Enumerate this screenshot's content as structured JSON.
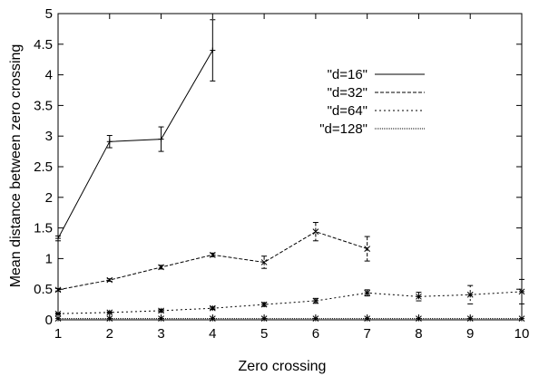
{
  "chart_data": {
    "type": "line",
    "xlabel": "Zero crossing",
    "ylabel": "Mean distance between zero crossing",
    "xlim": [
      1,
      10
    ],
    "ylim": [
      0,
      5
    ],
    "xticks": [
      1,
      2,
      3,
      4,
      5,
      6,
      7,
      8,
      9,
      10
    ],
    "yticks": [
      0,
      0.5,
      1,
      1.5,
      2,
      2.5,
      3,
      3.5,
      4,
      4.5,
      5
    ],
    "grid": false,
    "legend_position": "top-right",
    "series": [
      {
        "name": "\"d=16\"",
        "style": "solid",
        "x": [
          1,
          2,
          3,
          4
        ],
        "y": [
          1.33,
          2.91,
          2.95,
          4.4
        ],
        "err": [
          0.04,
          0.1,
          0.2,
          0.5
        ]
      },
      {
        "name": "\"d=32\"",
        "style": "dashed",
        "x": [
          1,
          2,
          3,
          4,
          5,
          6,
          7
        ],
        "y": [
          0.49,
          0.65,
          0.86,
          1.06,
          0.94,
          1.44,
          1.16
        ],
        "err": [
          0.02,
          0.02,
          0.03,
          0.03,
          0.1,
          0.15,
          0.2
        ]
      },
      {
        "name": "\"d=64\"",
        "style": "dotted",
        "x": [
          1,
          2,
          3,
          4,
          5,
          6,
          7,
          8,
          9,
          10
        ],
        "y": [
          0.1,
          0.12,
          0.15,
          0.19,
          0.25,
          0.31,
          0.44,
          0.38,
          0.41,
          0.46
        ],
        "err": [
          0.01,
          0.01,
          0.02,
          0.02,
          0.03,
          0.04,
          0.05,
          0.07,
          0.15,
          0.2
        ]
      },
      {
        "name": "\"d=128\"",
        "style": "fine-dotted",
        "x": [
          1,
          2,
          3,
          4,
          5,
          6,
          7,
          8,
          9,
          10
        ],
        "y": [
          0.02,
          0.02,
          0.02,
          0.02,
          0.02,
          0.02,
          0.02,
          0.02,
          0.02,
          0.02
        ],
        "err": [
          0.0,
          0.0,
          0.0,
          0.0,
          0.0,
          0.0,
          0.0,
          0.0,
          0.0,
          0.0
        ]
      }
    ]
  }
}
